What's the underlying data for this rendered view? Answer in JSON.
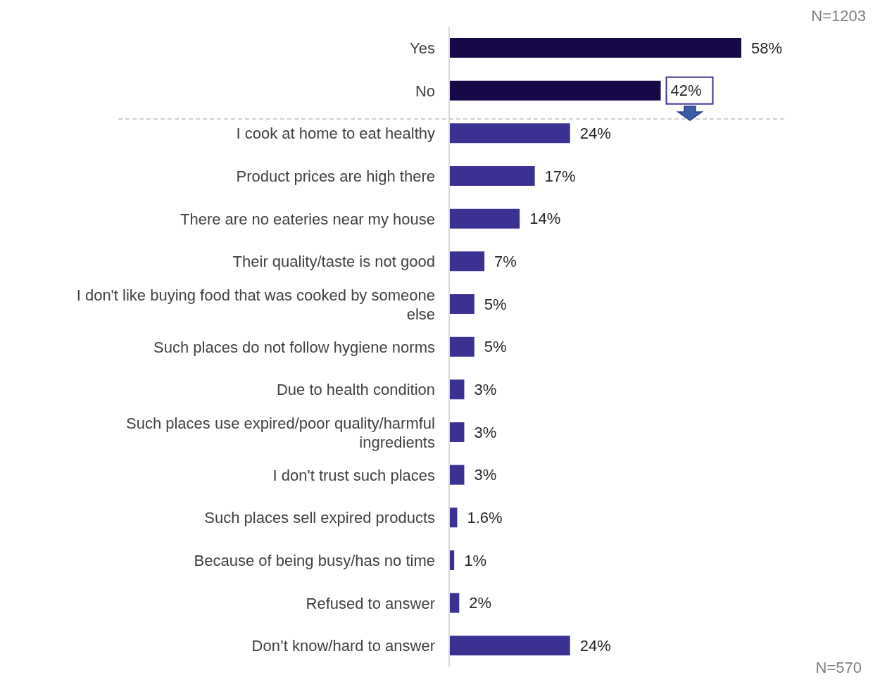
{
  "chart_data": {
    "type": "bar",
    "orientation": "horizontal",
    "categories": [
      "Yes",
      "No",
      "I cook at home to eat healthy",
      "Product prices are high there",
      "There are no eateries near my house",
      "Their quality/taste is not good",
      "I don't like buying food that was cooked by someone else",
      "Such places do not follow hygiene norms",
      "Due to health condition",
      "Such places use expired/poor quality/harmful ingredients",
      "I don't trust such places",
      "Such places sell expired products",
      "Because of being busy/has no time",
      "Refused to answer",
      "Don’t know/hard to answer"
    ],
    "values": [
      58,
      42,
      24,
      17,
      14,
      7,
      5,
      5,
      3,
      3,
      3,
      1.6,
      1,
      2,
      24
    ],
    "colors": [
      "#170848",
      "#170848",
      "#3a3192",
      "#3a3192",
      "#3a3192",
      "#3a3192",
      "#3a3192",
      "#3a3192",
      "#3a3192",
      "#3a3192",
      "#3a3192",
      "#3a3192",
      "#3a3192",
      "#3a3192",
      "#3a3192"
    ],
    "value_labels": [
      "58%",
      "42%",
      "24%",
      "17%",
      "14%",
      "7%",
      "5%",
      "5%",
      "3%",
      "3%",
      "3%",
      "1.6%",
      "1%",
      "2%",
      "24%"
    ],
    "tick_labels": "y",
    "annotations": [
      "N=1203",
      "N=570"
    ]
  }
}
